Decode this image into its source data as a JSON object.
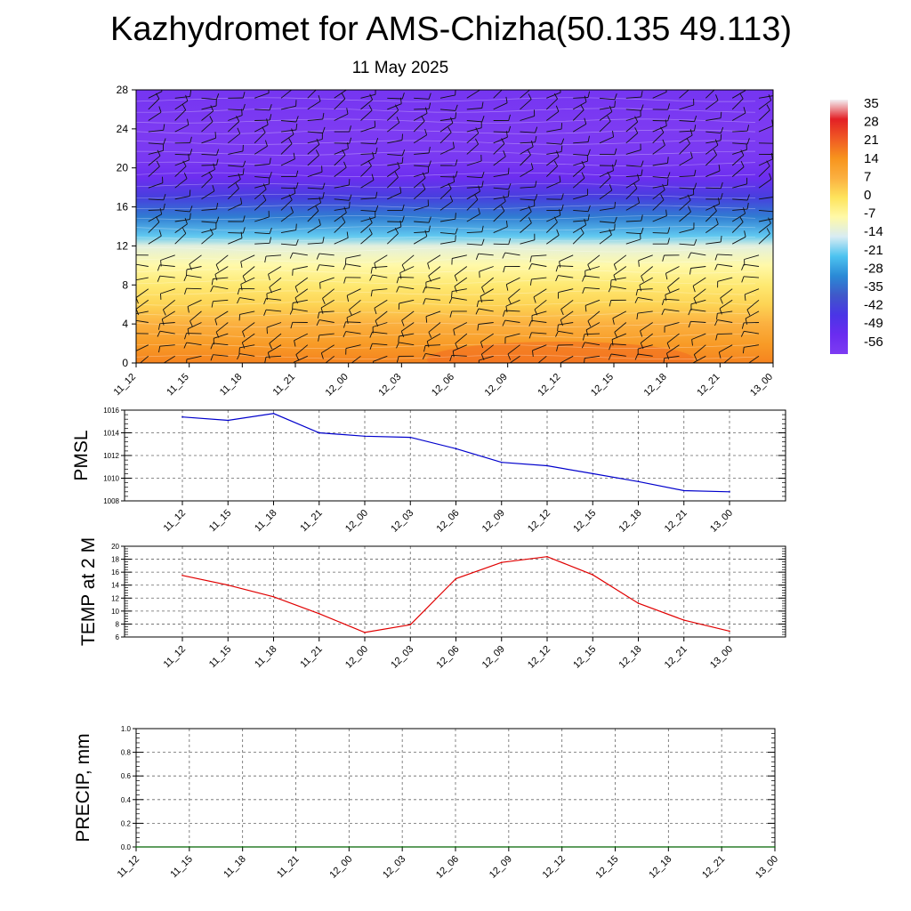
{
  "title": "Kazhydromet for AMS-Chizha(50.135 49.113)",
  "subtitle": "11 May 2025",
  "chart_data": [
    {
      "type": "heatmap",
      "ylim": [
        0,
        28
      ],
      "y_ticks": [
        0,
        4,
        8,
        12,
        16,
        20,
        24,
        28
      ],
      "x_ticks": [
        "11_12",
        "11_15",
        "11_18",
        "11_21",
        "12_00",
        "12_03",
        "12_06",
        "12_09",
        "12_12",
        "12_15",
        "12_18",
        "12_21",
        "13_00"
      ],
      "z_profile": [
        {
          "y": 0,
          "value": 16
        },
        {
          "y": 2,
          "value": 12
        },
        {
          "y": 4,
          "value": 7
        },
        {
          "y": 6,
          "value": 2
        },
        {
          "y": 8,
          "value": -2
        },
        {
          "y": 10,
          "value": -7
        },
        {
          "y": 12,
          "value": -12
        },
        {
          "y": 13,
          "value": -20
        },
        {
          "y": 15,
          "value": -30
        },
        {
          "y": 17,
          "value": -40
        },
        {
          "y": 19,
          "value": -50
        },
        {
          "y": 21,
          "value": -55
        },
        {
          "y": 24,
          "value": -57
        },
        {
          "y": 28,
          "value": -53
        }
      ],
      "colorbar": {
        "labels": [
          "35",
          "28",
          "21",
          "14",
          "7",
          "0",
          "-7",
          "-14",
          "-21",
          "-28",
          "-35",
          "-42",
          "-49",
          "-56"
        ],
        "stops": [
          "#f3f0f4",
          "#e32025",
          "#f05a24",
          "#f7941d",
          "#fbb040",
          "#fee35c",
          "#fff9a8",
          "#d8ecf3",
          "#4dc3f0",
          "#2a8ad6",
          "#3f58c9",
          "#4a35e6",
          "#6a2cf0",
          "#7d3bf2"
        ]
      },
      "grid": false
    },
    {
      "type": "line",
      "ylabel": "PMSL",
      "ylim": [
        1008,
        1016
      ],
      "y_ticks": [
        1008,
        1010,
        1012,
        1014,
        1016
      ],
      "categories": [
        "11_12",
        "11_15",
        "11_18",
        "11_21",
        "12_00",
        "12_03",
        "12_06",
        "12_09",
        "12_12",
        "12_15",
        "12_18",
        "12_21",
        "13_00"
      ],
      "values": [
        1015.4,
        1015.1,
        1015.7,
        1014.0,
        1013.7,
        1013.6,
        1012.6,
        1011.4,
        1011.1,
        1010.4,
        1009.7,
        1008.9,
        1008.8
      ],
      "color": "#0000cc",
      "grid": true
    },
    {
      "type": "line",
      "ylabel": "TEMP at 2 M",
      "ylim": [
        6,
        20
      ],
      "y_ticks": [
        6,
        8,
        10,
        12,
        14,
        16,
        18,
        20
      ],
      "categories": [
        "11_12",
        "11_15",
        "11_18",
        "11_21",
        "12_00",
        "12_03",
        "12_06",
        "12_09",
        "12_12",
        "12_15",
        "12_18",
        "12_21",
        "13_00"
      ],
      "values": [
        15.5,
        14.0,
        12.2,
        9.6,
        6.7,
        7.9,
        15.0,
        17.5,
        18.4,
        15.6,
        11.2,
        8.6,
        6.9
      ],
      "color": "#e00000",
      "grid": true
    },
    {
      "type": "line",
      "ylabel": "PRECIP, mm",
      "ylim": [
        0,
        1.0
      ],
      "y_ticks": [
        "0.0",
        "0.2",
        "0.4",
        "0.6",
        "0.8",
        "1.0"
      ],
      "categories": [
        "11_12",
        "11_15",
        "11_18",
        "11_21",
        "12_00",
        "12_03",
        "12_06",
        "12_09",
        "12_12",
        "12_15",
        "12_18",
        "12_21",
        "13_00"
      ],
      "values": [
        0,
        0,
        0,
        0,
        0,
        0,
        0,
        0,
        0,
        0,
        0,
        0,
        0
      ],
      "color": "#006400",
      "grid": true
    }
  ]
}
